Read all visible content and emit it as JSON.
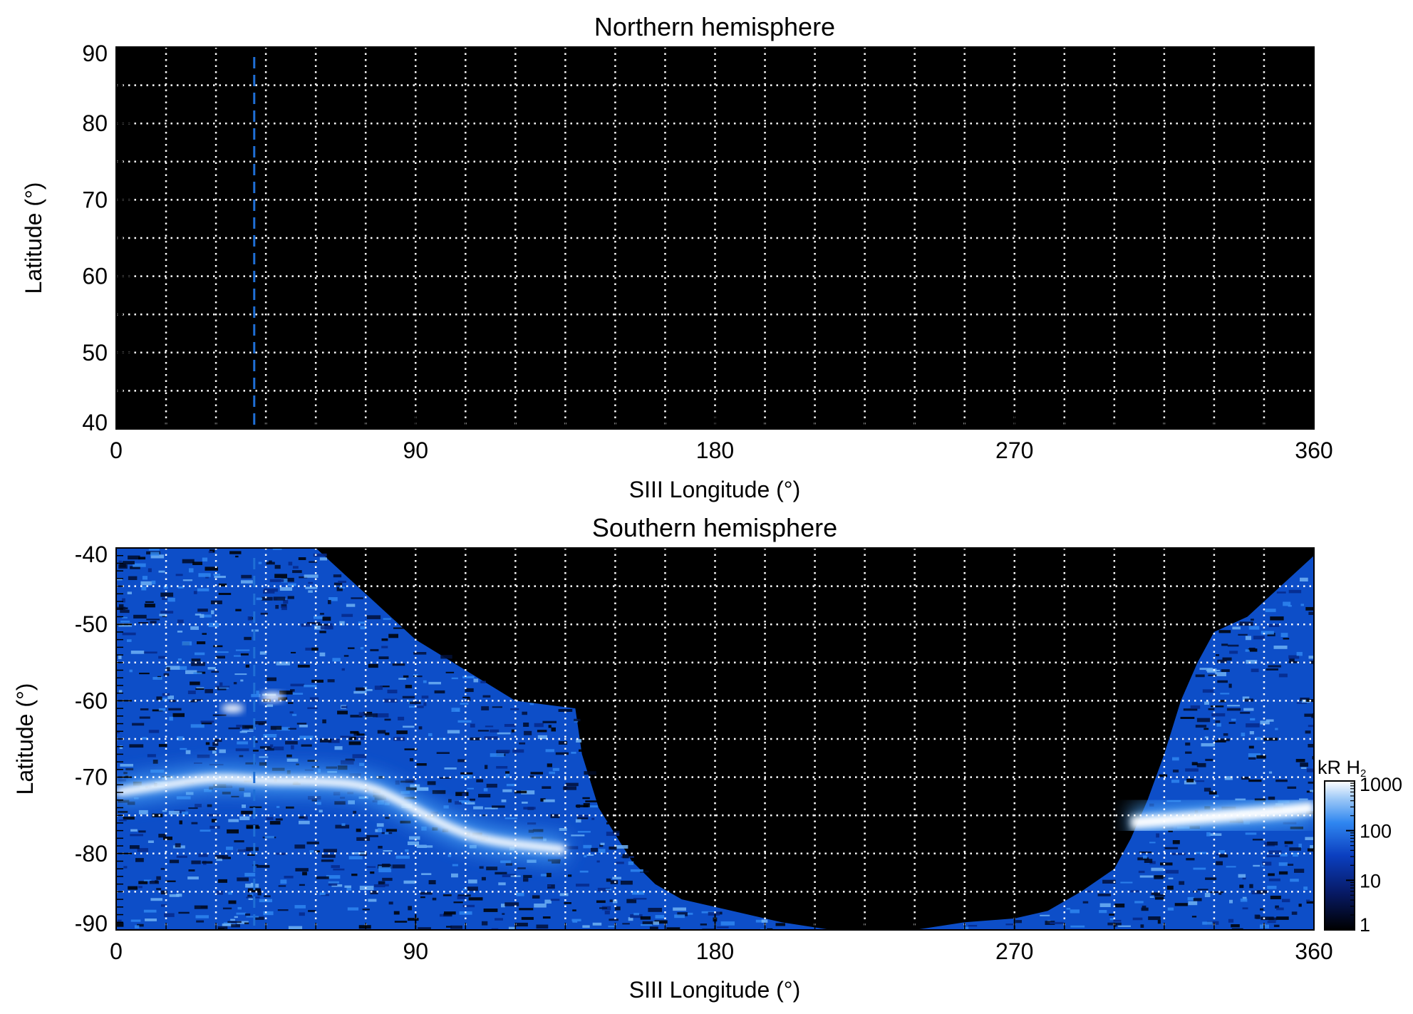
{
  "colors": {
    "background": "#000000",
    "grid": "#ffffff",
    "marker_line": "#1f6fd6",
    "emission_low": "#000000",
    "emission_mid": "#1f6fd6",
    "emission_high": "#ffffff"
  },
  "chart_data": [
    {
      "type": "heatmap",
      "title": "Northern hemisphere",
      "xlabel": "SIII Longitude (°)",
      "ylabel": "Latitude (°)",
      "xlim": [
        0,
        360
      ],
      "ylim": [
        40,
        90
      ],
      "x_ticks": [
        0,
        90,
        180,
        270,
        360
      ],
      "y_ticks": [
        40,
        50,
        60,
        70,
        80,
        90
      ],
      "x_tick_labels": [
        "0",
        "90",
        "180",
        "270",
        "360"
      ],
      "y_tick_labels": [
        "40",
        "50",
        "60",
        "70",
        "80",
        "90"
      ],
      "grid": true,
      "grid_style": "dotted",
      "x_grid_step": 15,
      "y_grid_step": 5,
      "marker_longitude": 41.5,
      "emission_present": false
    },
    {
      "type": "heatmap",
      "title": "Southern hemisphere",
      "xlabel": "SIII Longitude (°)",
      "ylabel": "Latitude (°)",
      "xlim": [
        0,
        360
      ],
      "ylim": [
        -90,
        -40
      ],
      "x_ticks": [
        0,
        90,
        180,
        270,
        360
      ],
      "y_ticks": [
        -90,
        -80,
        -70,
        -60,
        -50,
        -40
      ],
      "x_tick_labels": [
        "0",
        "90",
        "180",
        "270",
        "360"
      ],
      "y_tick_labels": [
        "-90",
        "-80",
        "-70",
        "-60",
        "-50",
        "-40"
      ],
      "grid": true,
      "grid_style": "dotted",
      "x_grid_step": 15,
      "y_grid_step": 5,
      "marker_longitude": 41.5,
      "emission_present": true,
      "coverage_edge_left": [
        [
          0,
          -40
        ],
        [
          30,
          -40
        ],
        [
          60,
          -40
        ],
        [
          75,
          -46
        ],
        [
          90,
          -52
        ],
        [
          105,
          -56
        ],
        [
          120,
          -60
        ],
        [
          138,
          -61
        ],
        [
          140,
          -67
        ],
        [
          145,
          -74
        ],
        [
          155,
          -81
        ],
        [
          162,
          -84
        ],
        [
          170,
          -86
        ],
        [
          180,
          -87
        ],
        [
          200,
          -89
        ],
        [
          215,
          -90
        ]
      ],
      "coverage_edge_right": [
        [
          240,
          -90
        ],
        [
          255,
          -89
        ],
        [
          270,
          -88.5
        ],
        [
          280,
          -87.5
        ],
        [
          290,
          -85
        ],
        [
          300,
          -82
        ],
        [
          305,
          -78
        ],
        [
          310,
          -73
        ],
        [
          315,
          -67
        ],
        [
          320,
          -60
        ],
        [
          325,
          -55
        ],
        [
          330,
          -51
        ],
        [
          340,
          -49
        ],
        [
          350,
          -45
        ],
        [
          360,
          -41
        ]
      ],
      "main_oval_left": [
        [
          0,
          -72
        ],
        [
          15,
          -71
        ],
        [
          30,
          -70
        ],
        [
          45,
          -70.5
        ],
        [
          60,
          -70.5
        ],
        [
          75,
          -71
        ],
        [
          85,
          -73
        ],
        [
          95,
          -75.5
        ],
        [
          105,
          -77.5
        ],
        [
          115,
          -78.5
        ],
        [
          125,
          -79
        ],
        [
          135,
          -79.5
        ]
      ],
      "main_oval_right": [
        [
          305,
          -76
        ],
        [
          320,
          -75.5
        ],
        [
          335,
          -75
        ],
        [
          350,
          -74.5
        ],
        [
          360,
          -74
        ]
      ],
      "spot_features": [
        [
          35,
          -61
        ],
        [
          47,
          -59.5
        ]
      ],
      "colorbar": {
        "title": "kR H",
        "title_subscript": "2",
        "scale": "log",
        "range": [
          1,
          1000
        ],
        "ticks": [
          1,
          10,
          100,
          1000
        ],
        "tick_labels": [
          "1",
          "10",
          "100",
          "1000"
        ]
      }
    }
  ]
}
